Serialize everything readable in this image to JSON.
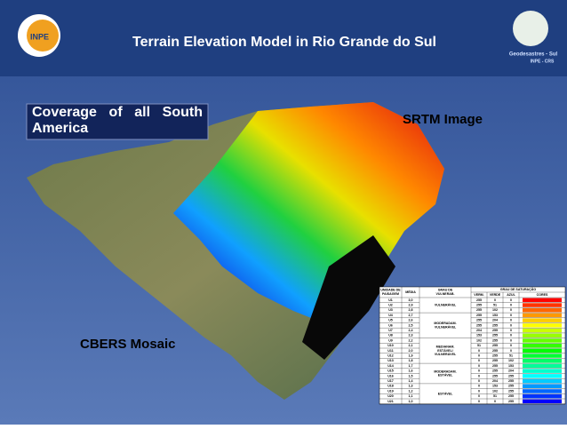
{
  "header": {
    "title": "Terrain Elevation Model in Rio Grande do Sul"
  },
  "logos": {
    "left": "INPE",
    "right_line1": "Geodesastres - Sul",
    "right_line2": "INPE - CRS"
  },
  "labels": {
    "coverage": "Coverage of all South America",
    "srtm": "SRTM Image",
    "cbers": "CBERS Mosaic"
  },
  "table": {
    "headers": {
      "unit": [
        "UNIDADE DE",
        "PAISAGEM"
      ],
      "media": "MÉDIA",
      "vulnerability": [
        "GRAU DE",
        "VULNERAB."
      ],
      "saturation": "GRAU DE SATURAÇÃO",
      "red": "VERM.",
      "green": "VERDE",
      "blue": "AZUL",
      "colors": "CORES"
    },
    "groups": [
      {
        "label": [
          "VULNERÁVEL"
        ],
        "rows": [
          [
            "U1",
            "3,0",
            255,
            0,
            0
          ],
          [
            "U2",
            "2,9",
            255,
            51,
            0
          ],
          [
            "U3",
            "2,8",
            255,
            102,
            0
          ]
        ]
      },
      {
        "label": [
          "MODERADAM.",
          "VULNERÁVEL"
        ],
        "rows": [
          [
            "U4",
            "2,7",
            255,
            153,
            0
          ],
          [
            "U5",
            "2,6",
            255,
            204,
            0
          ],
          [
            "U6",
            "2,5",
            255,
            255,
            0
          ],
          [
            "U7",
            "2,4",
            204,
            255,
            0
          ],
          [
            "U8",
            "2,3",
            153,
            255,
            0
          ]
        ]
      },
      {
        "label": [
          "MEDIANAM.",
          "ESTÁVEL/",
          "VULNERÁVEL"
        ],
        "rows": [
          [
            "U9",
            "2,2",
            102,
            255,
            0
          ],
          [
            "U10",
            "2,1",
            51,
            255,
            0
          ],
          [
            "U11",
            "2,0",
            0,
            255,
            0
          ],
          [
            "U12",
            "1,9",
            0,
            255,
            51
          ],
          [
            "U13",
            "1,8",
            0,
            255,
            102
          ]
        ]
      },
      {
        "label": [
          "MODERADAM.",
          "ESTÁVEL"
        ],
        "rows": [
          [
            "U14",
            "1,7",
            0,
            255,
            153
          ],
          [
            "U15",
            "1,6",
            0,
            255,
            204
          ],
          [
            "U16",
            "1,5",
            0,
            255,
            255
          ],
          [
            "U17",
            "1,4",
            0,
            204,
            255
          ]
        ]
      },
      {
        "label": [
          "ESTÁVEL"
        ],
        "rows": [
          [
            "U18",
            "1,3",
            0,
            153,
            255
          ],
          [
            "U19",
            "1,2",
            0,
            102,
            255
          ],
          [
            "U20",
            "1,1",
            0,
            51,
            255
          ],
          [
            "U21",
            "1,0",
            0,
            0,
            255
          ]
        ]
      }
    ]
  }
}
